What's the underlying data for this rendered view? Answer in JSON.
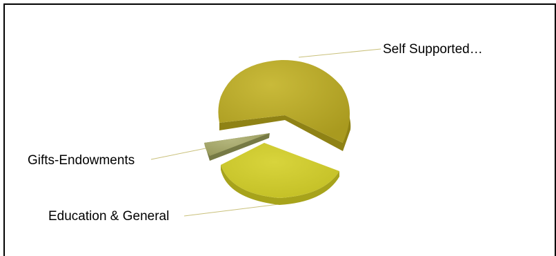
{
  "chart_data": {
    "type": "pie",
    "style": "3d-exploded",
    "title": "",
    "legend": "none",
    "slices": [
      {
        "label": "Self  Supported…",
        "value": 62,
        "color": "#b8a92a",
        "side_color": "#8f8215"
      },
      {
        "label": "Education & General",
        "value": 33,
        "color": "#cfcb2f",
        "side_color": "#a7a31b"
      },
      {
        "label": "Gifts-Endowments",
        "value": 5,
        "color": "#a7a96e",
        "side_color": "#767a45"
      }
    ],
    "leader_line_color": "#c9c07a"
  }
}
